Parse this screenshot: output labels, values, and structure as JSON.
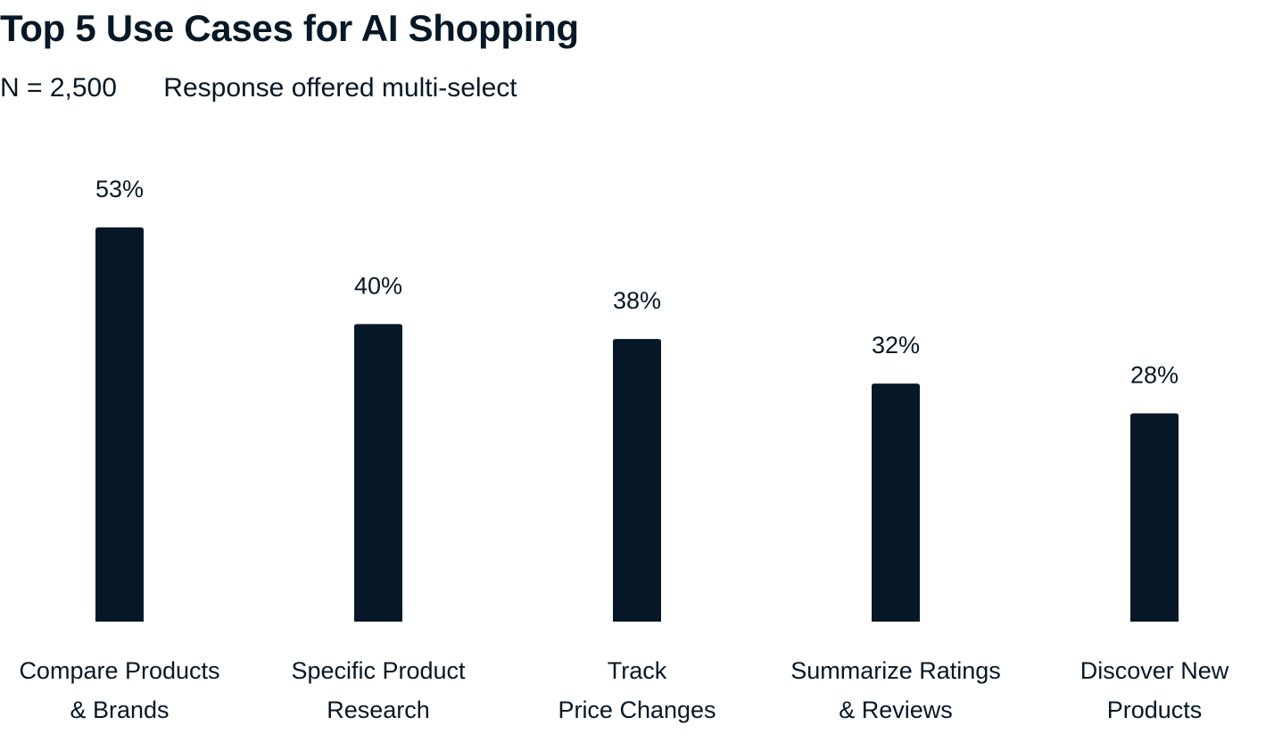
{
  "header": {
    "title": "Top 5 Use Cases for AI Shopping",
    "sample_size": "N = 2,500",
    "note": "Response offered multi-select"
  },
  "colors": {
    "bar": "#061726",
    "text": "#061726",
    "background": "#ffffff"
  },
  "chart_data": {
    "type": "bar",
    "title": "Top 5 Use Cases for AI Shopping",
    "xlabel": "",
    "ylabel": "",
    "categories": [
      [
        "Compare Products",
        "& Brands"
      ],
      [
        "Specific Product",
        "Research"
      ],
      [
        "Track",
        "Price Changes"
      ],
      [
        "Summarize Ratings",
        "& Reviews"
      ],
      [
        "Discover New",
        "Products"
      ]
    ],
    "values": [
      53,
      40,
      38,
      32,
      28
    ],
    "value_labels": [
      "53%",
      "40%",
      "38%",
      "32%",
      "28%"
    ],
    "ylim": [
      0,
      53
    ],
    "grid": false,
    "legend": "none"
  }
}
